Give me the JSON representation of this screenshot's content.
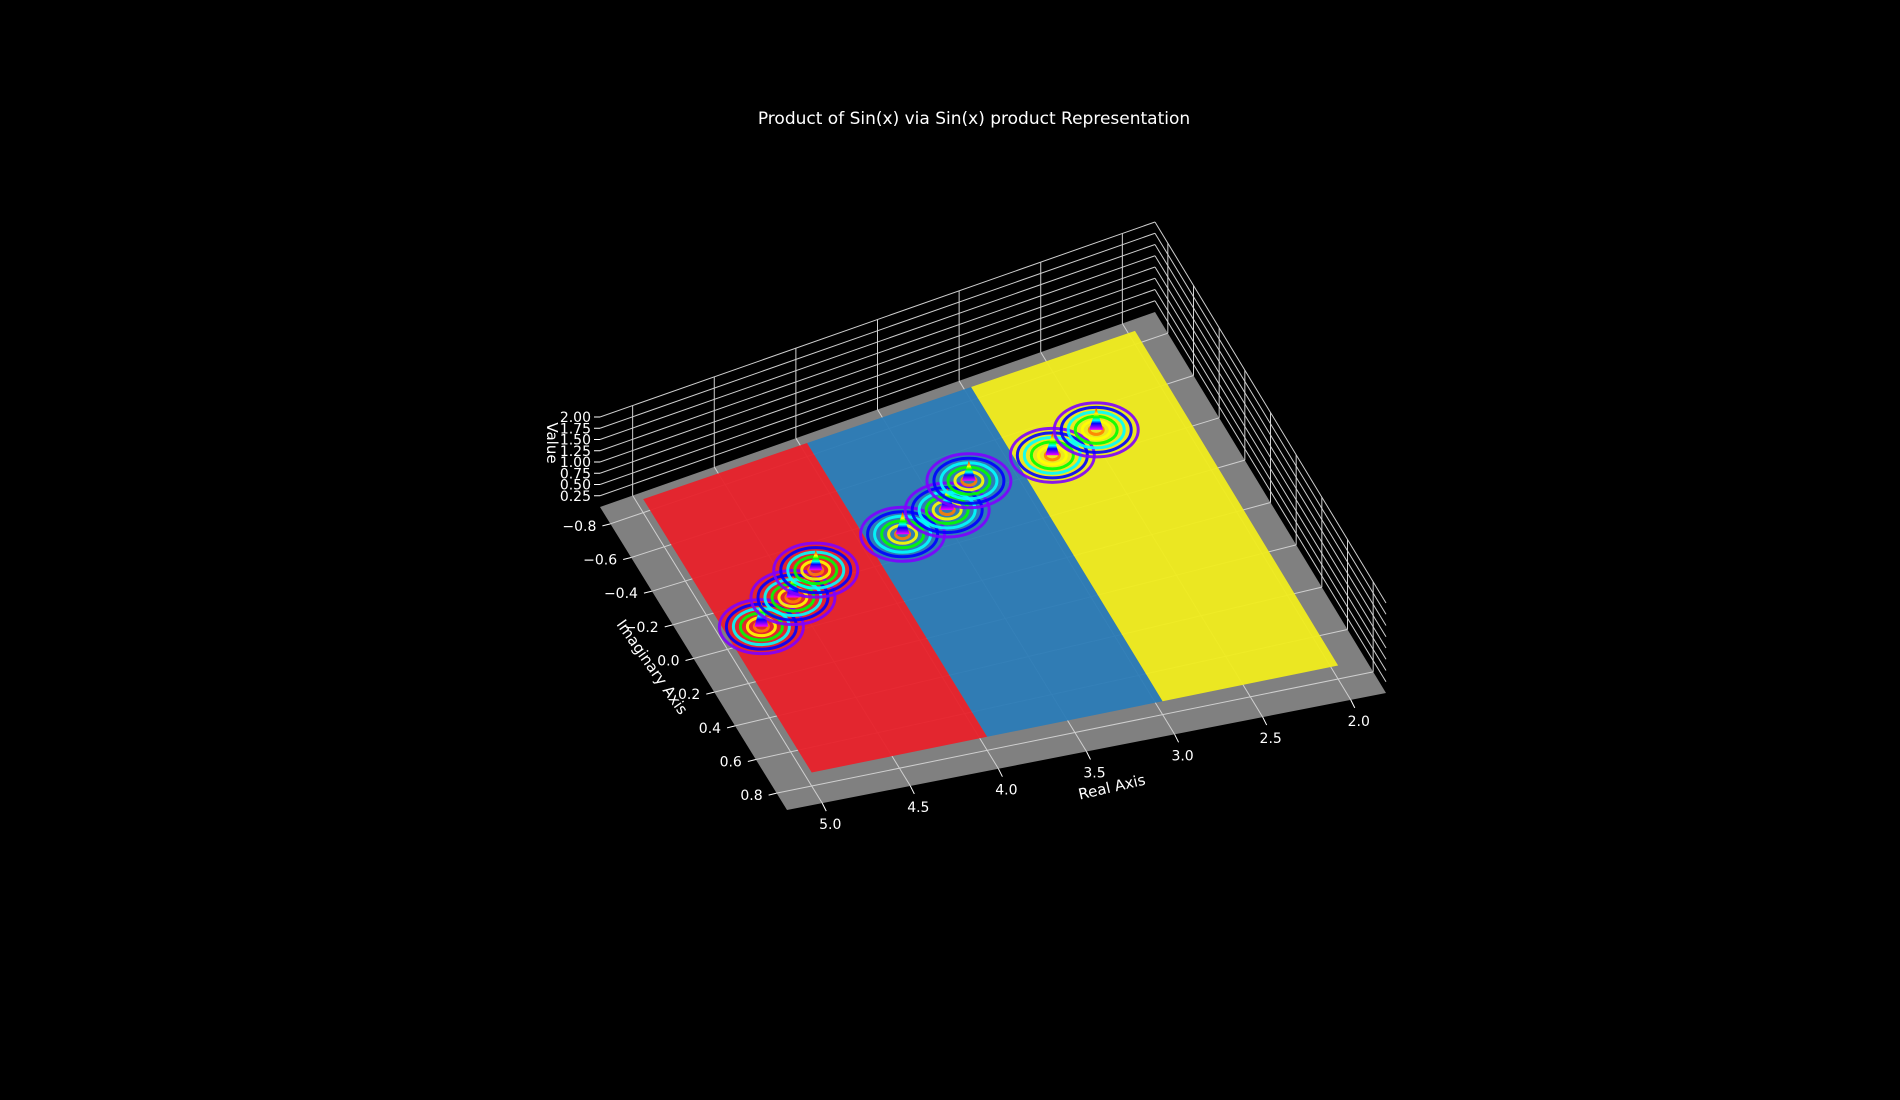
{
  "chart_data": {
    "type": "surface3d",
    "title": "Product of Sin(x) via Sin(x) product Representation",
    "xlabel": "Real Axis",
    "ylabel": "Imaginary Axis",
    "zlabel": "Value",
    "x_ticks": [
      "2.0",
      "2.5",
      "3.0",
      "3.5",
      "4.0",
      "4.5",
      "5.0"
    ],
    "y_ticks": [
      "−0.8",
      "−0.6",
      "−0.4",
      "−0.2",
      "0.0",
      "0.2",
      "0.4",
      "0.6",
      "0.8"
    ],
    "z_ticks": [
      "0.25",
      "0.50",
      "0.75",
      "1.00",
      "1.25",
      "1.50",
      "1.75",
      "2.00"
    ],
    "xlim": [
      1.8,
      5.2
    ],
    "ylim": [
      -0.9,
      0.9
    ],
    "zlim": [
      0,
      2.0
    ],
    "background": "#000000",
    "pane_color": "#808080",
    "grid": true,
    "colormap": "rainbow (cyclic phase)",
    "regions": [
      {
        "x_range": [
          4.0,
          5.0
        ],
        "color": "#e8212a"
      },
      {
        "x_range": [
          3.0,
          4.0
        ],
        "color": "#2b7bb6"
      },
      {
        "x_range": [
          2.0,
          3.0
        ],
        "color": "#f0ec1c"
      }
    ],
    "peaks": [
      {
        "x": 4.8,
        "y": 0.0,
        "z": 0.55
      },
      {
        "x": 4.55,
        "y": -0.1,
        "z": 0.5
      },
      {
        "x": 4.35,
        "y": -0.2,
        "z": 0.45
      },
      {
        "x": 3.8,
        "y": -0.25,
        "z": 0.5
      },
      {
        "x": 3.5,
        "y": -0.3,
        "z": 0.5
      },
      {
        "x": 3.3,
        "y": -0.4,
        "z": 0.45
      },
      {
        "x": 2.8,
        "y": -0.4,
        "z": 0.5
      },
      {
        "x": 2.5,
        "y": -0.45,
        "z": 0.5
      }
    ]
  }
}
